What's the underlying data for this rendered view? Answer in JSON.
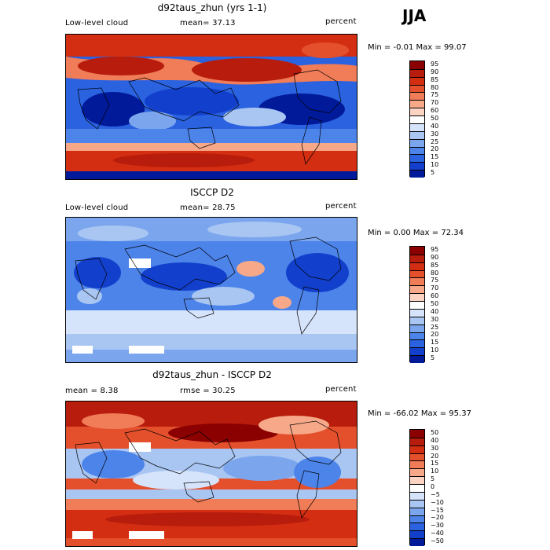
{
  "season": "JJA",
  "panels": [
    {
      "title": "d92taus_zhun (yrs 1-1)",
      "left_label": "Low-level cloud",
      "mid_label": "mean=  37.13",
      "right_label": "percent",
      "minmax": "Min =  -0.01 Max =  99.07",
      "colorbar": {
        "labels": [
          "95",
          "90",
          "85",
          "80",
          "75",
          "70",
          "60",
          "50",
          "40",
          "30",
          "25",
          "20",
          "15",
          "10",
          "5"
        ],
        "colors": [
          "#8b0000",
          "#b71c0c",
          "#d42e12",
          "#e5502c",
          "#f07c58",
          "#f6a889",
          "#fbd3c2",
          "#ffffff",
          "#d6e4fb",
          "#a9c6f3",
          "#7ba6ee",
          "#4d84ea",
          "#2a62e0",
          "#1240cc",
          "#001a9a"
        ]
      }
    },
    {
      "title": "ISCCP D2",
      "left_label": "Low-level cloud",
      "mid_label": "mean=  28.75",
      "right_label": "percent",
      "minmax": "Min =   0.00 Max =  72.34",
      "colorbar": {
        "labels": [
          "95",
          "90",
          "85",
          "80",
          "75",
          "70",
          "60",
          "50",
          "40",
          "30",
          "25",
          "20",
          "15",
          "10",
          "5"
        ],
        "colors": [
          "#8b0000",
          "#b71c0c",
          "#d42e12",
          "#e5502c",
          "#f07c58",
          "#f6a889",
          "#fbd3c2",
          "#ffffff",
          "#d6e4fb",
          "#a9c6f3",
          "#7ba6ee",
          "#4d84ea",
          "#2a62e0",
          "#1240cc",
          "#001a9a"
        ]
      }
    },
    {
      "title": "d92taus_zhun - ISCCP D2",
      "left_label": "mean =   8.38",
      "mid_label": "rmse =  30.25",
      "right_label": "percent",
      "minmax": "Min = -66.02 Max =  95.37",
      "colorbar": {
        "labels": [
          "50",
          "40",
          "30",
          "20",
          "15",
          "10",
          "5",
          "0",
          "−5",
          "−10",
          "−15",
          "−20",
          "−30",
          "−40",
          "−50"
        ],
        "colors": [
          "#8b0000",
          "#b71c0c",
          "#d42e12",
          "#e5502c",
          "#f07c58",
          "#f6a889",
          "#fbd3c2",
          "#ffffff",
          "#d6e4fb",
          "#a9c6f3",
          "#7ba6ee",
          "#4d84ea",
          "#2a62e0",
          "#1240cc",
          "#001a9a"
        ]
      }
    }
  ]
}
